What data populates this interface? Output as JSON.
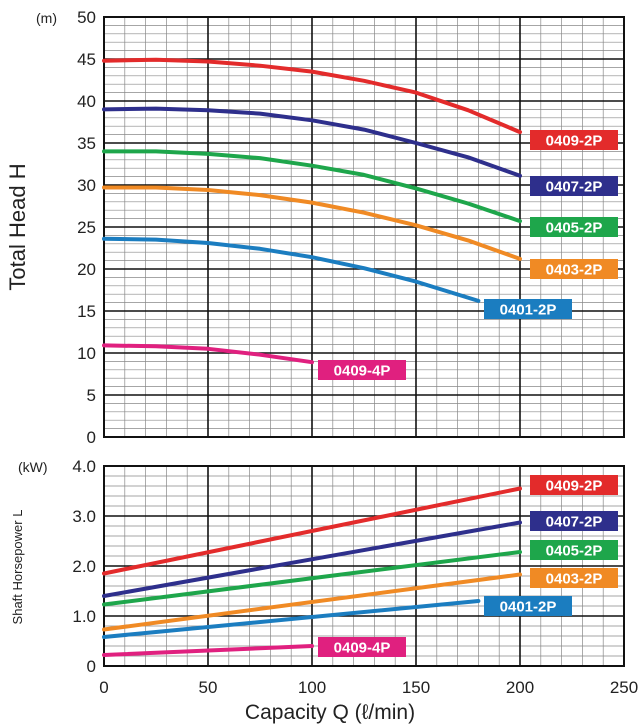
{
  "chart_data": [
    {
      "type": "line",
      "ylabel": "Total Head H",
      "yunit": "(m)",
      "xlim": [
        0,
        250
      ],
      "ylim": [
        0,
        50
      ],
      "x_ticks": [
        0,
        50,
        100,
        150,
        200,
        250
      ],
      "y_ticks": [
        0,
        5,
        10,
        15,
        20,
        25,
        30,
        35,
        40,
        45,
        50
      ],
      "grid": true,
      "series": [
        {
          "name": "0409-2P",
          "color": "#e32b2b",
          "x": [
            0,
            25,
            50,
            75,
            100,
            125,
            150,
            175,
            200
          ],
          "y": [
            44.8,
            44.9,
            44.7,
            44.2,
            43.5,
            42.4,
            41.0,
            38.9,
            36.3
          ]
        },
        {
          "name": "0407-2P",
          "color": "#2e2f8c",
          "x": [
            0,
            25,
            50,
            75,
            100,
            125,
            150,
            175,
            200
          ],
          "y": [
            39.0,
            39.1,
            38.9,
            38.5,
            37.7,
            36.6,
            35.0,
            33.3,
            31.1
          ]
        },
        {
          "name": "0405-2P",
          "color": "#1ea64b",
          "x": [
            0,
            25,
            50,
            75,
            100,
            125,
            150,
            175,
            200
          ],
          "y": [
            34.0,
            34.0,
            33.7,
            33.2,
            32.3,
            31.2,
            29.6,
            27.8,
            25.7
          ]
        },
        {
          "name": "0403-2P",
          "color": "#f08a24",
          "x": [
            0,
            25,
            50,
            75,
            100,
            125,
            150,
            175,
            200
          ],
          "y": [
            29.7,
            29.7,
            29.4,
            28.8,
            27.9,
            26.7,
            25.2,
            23.4,
            21.2
          ]
        },
        {
          "name": "0401-2P",
          "color": "#1b7dc0",
          "x": [
            0,
            25,
            50,
            75,
            100,
            125,
            150,
            180
          ],
          "y": [
            23.6,
            23.5,
            23.1,
            22.4,
            21.4,
            20.1,
            18.5,
            16.2
          ]
        },
        {
          "name": "0409-4P",
          "color": "#e0207f",
          "x": [
            0,
            25,
            50,
            75,
            100
          ],
          "y": [
            10.9,
            10.8,
            10.5,
            9.8,
            8.9
          ]
        }
      ]
    },
    {
      "type": "line",
      "xlabel": "Capacity Q (ℓ/min)",
      "ylabel": "Shaft Horsepower L",
      "yunit": "(kW)",
      "xlim": [
        0,
        250
      ],
      "ylim": [
        0,
        4
      ],
      "x_ticks": [
        0,
        50,
        100,
        150,
        200,
        250
      ],
      "y_ticks": [
        "0",
        "1.0",
        "2.0",
        "3.0",
        "4.0"
      ],
      "grid": true,
      "series": [
        {
          "name": "0409-2P",
          "color": "#e32b2b",
          "x": [
            0,
            200
          ],
          "y": [
            1.85,
            3.55
          ]
        },
        {
          "name": "0407-2P",
          "color": "#2e2f8c",
          "x": [
            0,
            200
          ],
          "y": [
            1.4,
            2.87
          ]
        },
        {
          "name": "0405-2P",
          "color": "#1ea64b",
          "x": [
            0,
            200
          ],
          "y": [
            1.23,
            2.28
          ]
        },
        {
          "name": "0403-2P",
          "color": "#f08a24",
          "x": [
            0,
            200
          ],
          "y": [
            0.73,
            1.83
          ]
        },
        {
          "name": "0401-2P",
          "color": "#1b7dc0",
          "x": [
            0,
            180
          ],
          "y": [
            0.58,
            1.3
          ]
        },
        {
          "name": "0409-4P",
          "color": "#e0207f",
          "x": [
            0,
            100
          ],
          "y": [
            0.22,
            0.4
          ]
        }
      ]
    }
  ]
}
